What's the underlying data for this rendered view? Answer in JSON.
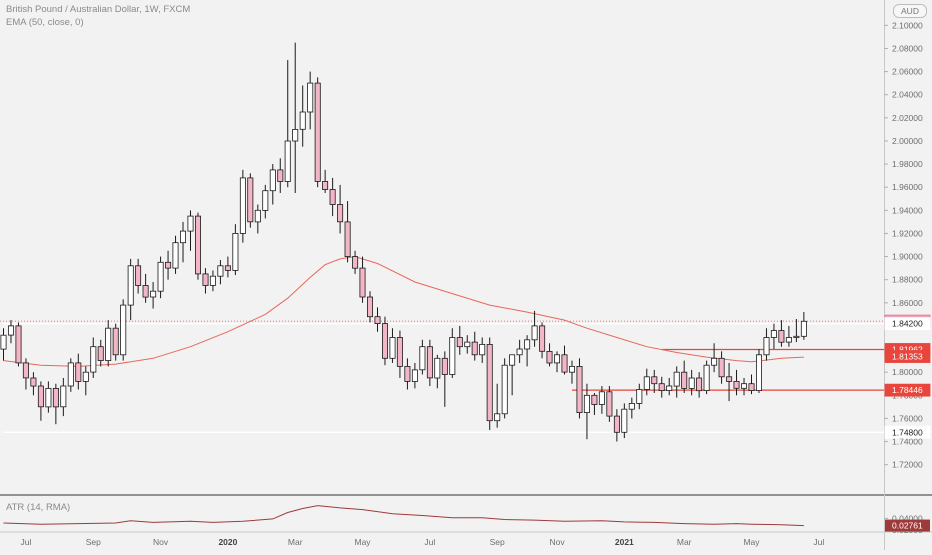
{
  "legend": {
    "title": "British Pound / Australian Dollar, 1W, FXCM",
    "ema": "EMA (50, close, 0)",
    "atr": "ATR (14, RMA)"
  },
  "currency_badge": "AUD",
  "colors": {
    "background": "#f2f2f2",
    "up_candle": "#ffffff",
    "down_candle": "#f3b6c6",
    "candle_outline": "#1a1a1a",
    "ema_line": "#e8675c",
    "atr_line": "#9e3a3a",
    "support_line": "#ffffff",
    "resistance_line": "#e8453c",
    "pane_border": "#333333",
    "price_dotted": "#e8453c"
  },
  "chart_data": {
    "type": "candlestick",
    "title": "British Pound / Australian Dollar, 1W, FXCM",
    "y_axis": {
      "ticks": [
        "2.10000",
        "2.08000",
        "2.06000",
        "2.04000",
        "2.02000",
        "2.00000",
        "1.98000",
        "1.96000",
        "1.94000",
        "1.92000",
        "1.90000",
        "1.88000",
        "1.86000",
        "1.84000",
        "1.82000",
        "1.80000",
        "1.78000",
        "1.76000",
        "1.74000",
        "1.72000"
      ],
      "ylim": [
        1.705,
        2.115
      ],
      "position": "right"
    },
    "x_axis": {
      "ticks": [
        {
          "label": "Jul",
          "bold": false,
          "week": 3
        },
        {
          "label": "Sep",
          "bold": false,
          "week": 12
        },
        {
          "label": "Nov",
          "bold": false,
          "week": 21
        },
        {
          "label": "2020",
          "bold": true,
          "week": 30
        },
        {
          "label": "Mar",
          "bold": false,
          "week": 39
        },
        {
          "label": "May",
          "bold": false,
          "week": 48
        },
        {
          "label": "Jul",
          "bold": false,
          "week": 57
        },
        {
          "label": "Sep",
          "bold": false,
          "week": 66
        },
        {
          "label": "Nov",
          "bold": false,
          "week": 74
        },
        {
          "label": "2021",
          "bold": true,
          "week": 83
        },
        {
          "label": "Mar",
          "bold": false,
          "week": 91
        },
        {
          "label": "May",
          "bold": false,
          "week": 100
        },
        {
          "label": "Jul",
          "bold": false,
          "week": 109
        }
      ]
    },
    "candles": [
      {
        "o": 1.82,
        "h": 1.838,
        "l": 1.81,
        "c": 1.832
      },
      {
        "o": 1.832,
        "h": 1.845,
        "l": 1.825,
        "c": 1.84
      },
      {
        "o": 1.84,
        "h": 1.843,
        "l": 1.805,
        "c": 1.808
      },
      {
        "o": 1.808,
        "h": 1.812,
        "l": 1.785,
        "c": 1.795
      },
      {
        "o": 1.795,
        "h": 1.8,
        "l": 1.78,
        "c": 1.788
      },
      {
        "o": 1.788,
        "h": 1.792,
        "l": 1.758,
        "c": 1.77
      },
      {
        "o": 1.77,
        "h": 1.792,
        "l": 1.765,
        "c": 1.786
      },
      {
        "o": 1.786,
        "h": 1.79,
        "l": 1.755,
        "c": 1.77
      },
      {
        "o": 1.77,
        "h": 1.795,
        "l": 1.762,
        "c": 1.788
      },
      {
        "o": 1.788,
        "h": 1.812,
        "l": 1.783,
        "c": 1.808
      },
      {
        "o": 1.808,
        "h": 1.816,
        "l": 1.785,
        "c": 1.792
      },
      {
        "o": 1.792,
        "h": 1.805,
        "l": 1.78,
        "c": 1.8
      },
      {
        "o": 1.8,
        "h": 1.83,
        "l": 1.795,
        "c": 1.822
      },
      {
        "o": 1.822,
        "h": 1.828,
        "l": 1.805,
        "c": 1.81
      },
      {
        "o": 1.81,
        "h": 1.845,
        "l": 1.805,
        "c": 1.838
      },
      {
        "o": 1.838,
        "h": 1.842,
        "l": 1.81,
        "c": 1.815
      },
      {
        "o": 1.815,
        "h": 1.863,
        "l": 1.81,
        "c": 1.858
      },
      {
        "o": 1.858,
        "h": 1.898,
        "l": 1.845,
        "c": 1.892
      },
      {
        "o": 1.892,
        "h": 1.898,
        "l": 1.868,
        "c": 1.875
      },
      {
        "o": 1.875,
        "h": 1.885,
        "l": 1.86,
        "c": 1.865
      },
      {
        "o": 1.865,
        "h": 1.878,
        "l": 1.855,
        "c": 1.87
      },
      {
        "o": 1.87,
        "h": 1.9,
        "l": 1.864,
        "c": 1.895
      },
      {
        "o": 1.895,
        "h": 1.905,
        "l": 1.88,
        "c": 1.89
      },
      {
        "o": 1.89,
        "h": 1.918,
        "l": 1.885,
        "c": 1.912
      },
      {
        "o": 1.912,
        "h": 1.93,
        "l": 1.895,
        "c": 1.922
      },
      {
        "o": 1.922,
        "h": 1.94,
        "l": 1.905,
        "c": 1.935
      },
      {
        "o": 1.935,
        "h": 1.938,
        "l": 1.88,
        "c": 1.885
      },
      {
        "o": 1.885,
        "h": 1.89,
        "l": 1.868,
        "c": 1.875
      },
      {
        "o": 1.875,
        "h": 1.888,
        "l": 1.87,
        "c": 1.883
      },
      {
        "o": 1.883,
        "h": 1.897,
        "l": 1.876,
        "c": 1.892
      },
      {
        "o": 1.892,
        "h": 1.9,
        "l": 1.882,
        "c": 1.888
      },
      {
        "o": 1.888,
        "h": 1.928,
        "l": 1.884,
        "c": 1.92
      },
      {
        "o": 1.92,
        "h": 1.975,
        "l": 1.912,
        "c": 1.968
      },
      {
        "o": 1.968,
        "h": 1.972,
        "l": 1.925,
        "c": 1.93
      },
      {
        "o": 1.93,
        "h": 1.945,
        "l": 1.92,
        "c": 1.94
      },
      {
        "o": 1.94,
        "h": 1.962,
        "l": 1.933,
        "c": 1.957
      },
      {
        "o": 1.957,
        "h": 1.98,
        "l": 1.945,
        "c": 1.975
      },
      {
        "o": 1.975,
        "h": 1.985,
        "l": 1.955,
        "c": 1.965
      },
      {
        "o": 1.965,
        "h": 2.07,
        "l": 1.96,
        "c": 2.0
      },
      {
        "o": 2.0,
        "h": 2.085,
        "l": 1.955,
        "c": 2.01
      },
      {
        "o": 2.01,
        "h": 2.048,
        "l": 1.995,
        "c": 2.025
      },
      {
        "o": 2.025,
        "h": 2.06,
        "l": 2.01,
        "c": 2.05
      },
      {
        "o": 2.05,
        "h": 2.055,
        "l": 1.96,
        "c": 1.965
      },
      {
        "o": 1.965,
        "h": 1.975,
        "l": 1.955,
        "c": 1.958
      },
      {
        "o": 1.958,
        "h": 1.968,
        "l": 1.935,
        "c": 1.945
      },
      {
        "o": 1.945,
        "h": 1.962,
        "l": 1.92,
        "c": 1.93
      },
      {
        "o": 1.93,
        "h": 1.948,
        "l": 1.895,
        "c": 1.9
      },
      {
        "o": 1.9,
        "h": 1.905,
        "l": 1.885,
        "c": 1.89
      },
      {
        "o": 1.89,
        "h": 1.9,
        "l": 1.86,
        "c": 1.865
      },
      {
        "o": 1.865,
        "h": 1.87,
        "l": 1.843,
        "c": 1.848
      },
      {
        "o": 1.848,
        "h": 1.856,
        "l": 1.835,
        "c": 1.842
      },
      {
        "o": 1.842,
        "h": 1.848,
        "l": 1.806,
        "c": 1.812
      },
      {
        "o": 1.812,
        "h": 1.838,
        "l": 1.808,
        "c": 1.83
      },
      {
        "o": 1.83,
        "h": 1.836,
        "l": 1.795,
        "c": 1.805
      },
      {
        "o": 1.805,
        "h": 1.812,
        "l": 1.785,
        "c": 1.792
      },
      {
        "o": 1.792,
        "h": 1.808,
        "l": 1.786,
        "c": 1.802
      },
      {
        "o": 1.802,
        "h": 1.828,
        "l": 1.798,
        "c": 1.822
      },
      {
        "o": 1.822,
        "h": 1.828,
        "l": 1.788,
        "c": 1.795
      },
      {
        "o": 1.795,
        "h": 1.815,
        "l": 1.786,
        "c": 1.812
      },
      {
        "o": 1.812,
        "h": 1.818,
        "l": 1.77,
        "c": 1.798
      },
      {
        "o": 1.798,
        "h": 1.838,
        "l": 1.795,
        "c": 1.83
      },
      {
        "o": 1.83,
        "h": 1.84,
        "l": 1.815,
        "c": 1.822
      },
      {
        "o": 1.822,
        "h": 1.832,
        "l": 1.816,
        "c": 1.826
      },
      {
        "o": 1.826,
        "h": 1.835,
        "l": 1.81,
        "c": 1.815
      },
      {
        "o": 1.815,
        "h": 1.83,
        "l": 1.808,
        "c": 1.824
      },
      {
        "o": 1.824,
        "h": 1.83,
        "l": 1.75,
        "c": 1.758
      },
      {
        "o": 1.758,
        "h": 1.79,
        "l": 1.752,
        "c": 1.764
      },
      {
        "o": 1.764,
        "h": 1.812,
        "l": 1.76,
        "c": 1.806
      },
      {
        "o": 1.806,
        "h": 1.815,
        "l": 1.78,
        "c": 1.815
      },
      {
        "o": 1.815,
        "h": 1.828,
        "l": 1.808,
        "c": 1.82
      },
      {
        "o": 1.82,
        "h": 1.832,
        "l": 1.805,
        "c": 1.828
      },
      {
        "o": 1.828,
        "h": 1.853,
        "l": 1.822,
        "c": 1.84
      },
      {
        "o": 1.84,
        "h": 1.843,
        "l": 1.812,
        "c": 1.818
      },
      {
        "o": 1.818,
        "h": 1.825,
        "l": 1.805,
        "c": 1.808
      },
      {
        "o": 1.808,
        "h": 1.818,
        "l": 1.8,
        "c": 1.815
      },
      {
        "o": 1.815,
        "h": 1.823,
        "l": 1.798,
        "c": 1.8
      },
      {
        "o": 1.8,
        "h": 1.81,
        "l": 1.79,
        "c": 1.805
      },
      {
        "o": 1.805,
        "h": 1.812,
        "l": 1.76,
        "c": 1.765
      },
      {
        "o": 1.765,
        "h": 1.79,
        "l": 1.742,
        "c": 1.78
      },
      {
        "o": 1.78,
        "h": 1.782,
        "l": 1.763,
        "c": 1.772
      },
      {
        "o": 1.772,
        "h": 1.788,
        "l": 1.764,
        "c": 1.783
      },
      {
        "o": 1.783,
        "h": 1.788,
        "l": 1.757,
        "c": 1.762
      },
      {
        "o": 1.762,
        "h": 1.768,
        "l": 1.74,
        "c": 1.748
      },
      {
        "o": 1.748,
        "h": 1.773,
        "l": 1.743,
        "c": 1.768
      },
      {
        "o": 1.768,
        "h": 1.778,
        "l": 1.76,
        "c": 1.773
      },
      {
        "o": 1.773,
        "h": 1.79,
        "l": 1.768,
        "c": 1.785
      },
      {
        "o": 1.785,
        "h": 1.803,
        "l": 1.78,
        "c": 1.796
      },
      {
        "o": 1.796,
        "h": 1.802,
        "l": 1.782,
        "c": 1.79
      },
      {
        "o": 1.79,
        "h": 1.796,
        "l": 1.778,
        "c": 1.784
      },
      {
        "o": 1.784,
        "h": 1.795,
        "l": 1.78,
        "c": 1.788
      },
      {
        "o": 1.788,
        "h": 1.805,
        "l": 1.778,
        "c": 1.8
      },
      {
        "o": 1.8,
        "h": 1.81,
        "l": 1.782,
        "c": 1.786
      },
      {
        "o": 1.786,
        "h": 1.802,
        "l": 1.78,
        "c": 1.795
      },
      {
        "o": 1.795,
        "h": 1.8,
        "l": 1.778,
        "c": 1.784
      },
      {
        "o": 1.784,
        "h": 1.81,
        "l": 1.781,
        "c": 1.806
      },
      {
        "o": 1.806,
        "h": 1.825,
        "l": 1.8,
        "c": 1.812
      },
      {
        "o": 1.812,
        "h": 1.818,
        "l": 1.79,
        "c": 1.796
      },
      {
        "o": 1.796,
        "h": 1.808,
        "l": 1.775,
        "c": 1.792
      },
      {
        "o": 1.792,
        "h": 1.802,
        "l": 1.78,
        "c": 1.786
      },
      {
        "o": 1.786,
        "h": 1.795,
        "l": 1.78,
        "c": 1.79
      },
      {
        "o": 1.79,
        "h": 1.798,
        "l": 1.781,
        "c": 1.784
      },
      {
        "o": 1.784,
        "h": 1.82,
        "l": 1.782,
        "c": 1.815
      },
      {
        "o": 1.815,
        "h": 1.838,
        "l": 1.81,
        "c": 1.83
      },
      {
        "o": 1.83,
        "h": 1.842,
        "l": 1.82,
        "c": 1.836
      },
      {
        "o": 1.836,
        "h": 1.845,
        "l": 1.822,
        "c": 1.826
      },
      {
        "o": 1.826,
        "h": 1.84,
        "l": 1.822,
        "c": 1.83
      },
      {
        "o": 1.83,
        "h": 1.846,
        "l": 1.826,
        "c": 1.831
      },
      {
        "o": 1.831,
        "h": 1.852,
        "l": 1.828,
        "c": 1.844
      }
    ],
    "ema": {
      "name": "EMA (50, close, 0)",
      "points": [
        [
          0,
          1.81
        ],
        [
          5,
          1.806
        ],
        [
          10,
          1.805
        ],
        [
          15,
          1.807
        ],
        [
          20,
          1.812
        ],
        [
          25,
          1.822
        ],
        [
          30,
          1.835
        ],
        [
          35,
          1.85
        ],
        [
          38,
          1.864
        ],
        [
          41,
          1.882
        ],
        [
          43,
          1.893
        ],
        [
          45,
          1.898
        ],
        [
          47,
          1.9
        ],
        [
          50,
          1.894
        ],
        [
          55,
          1.878
        ],
        [
          60,
          1.868
        ],
        [
          65,
          1.858
        ],
        [
          70,
          1.852
        ],
        [
          75,
          1.845
        ],
        [
          78,
          1.838
        ],
        [
          82,
          1.83
        ],
        [
          86,
          1.822
        ],
        [
          90,
          1.817
        ],
        [
          94,
          1.813
        ],
        [
          98,
          1.81
        ],
        [
          100,
          1.809
        ],
        [
          104,
          1.812
        ],
        [
          107,
          1.813
        ]
      ]
    },
    "atr": {
      "name": "ATR (14, RMA)",
      "ylim": [
        0.02,
        0.075
      ],
      "ticks": [
        "0.04000",
        "0.02000"
      ],
      "points": [
        [
          0,
          0.032
        ],
        [
          5,
          0.03
        ],
        [
          10,
          0.031
        ],
        [
          15,
          0.032
        ],
        [
          17,
          0.036
        ],
        [
          20,
          0.033
        ],
        [
          25,
          0.035
        ],
        [
          28,
          0.033
        ],
        [
          32,
          0.035
        ],
        [
          36,
          0.039
        ],
        [
          38,
          0.05
        ],
        [
          40,
          0.057
        ],
        [
          42,
          0.062
        ],
        [
          45,
          0.058
        ],
        [
          48,
          0.055
        ],
        [
          52,
          0.048
        ],
        [
          56,
          0.045
        ],
        [
          60,
          0.041
        ],
        [
          64,
          0.041
        ],
        [
          67,
          0.038
        ],
        [
          71,
          0.037
        ],
        [
          75,
          0.035
        ],
        [
          80,
          0.036
        ],
        [
          83,
          0.034
        ],
        [
          87,
          0.033
        ],
        [
          91,
          0.031
        ],
        [
          95,
          0.03
        ],
        [
          98,
          0.031
        ],
        [
          100,
          0.03
        ],
        [
          104,
          0.029
        ],
        [
          107,
          0.0276
        ]
      ]
    },
    "price_badges": [
      {
        "value": "1.84417",
        "price": 1.84417,
        "style": "pink"
      },
      {
        "value": "1.84200",
        "price": 1.842,
        "style": "white"
      },
      {
        "value": "1.81962",
        "price": 1.81962,
        "style": "red"
      },
      {
        "value": "1.81353",
        "price": 1.81353,
        "style": "red"
      },
      {
        "value": "1.78446",
        "price": 1.78446,
        "style": "red"
      },
      {
        "value": "1.74800",
        "price": 1.748,
        "style": "white"
      }
    ],
    "atr_badge": {
      "value": "0.02761",
      "atr": 0.02761
    },
    "horizontal_lines": [
      {
        "price": 1.842,
        "color": "#ffffff",
        "from_week": 0,
        "to_week": 112
      },
      {
        "price": 1.748,
        "color": "#ffffff",
        "from_week": 0,
        "to_week": 112
      },
      {
        "price": 1.81962,
        "color": "#e8453c",
        "from_week": 88,
        "to_week": 112
      },
      {
        "price": 1.78446,
        "color": "#e8453c",
        "from_week": 76,
        "to_week": 112
      }
    ]
  }
}
